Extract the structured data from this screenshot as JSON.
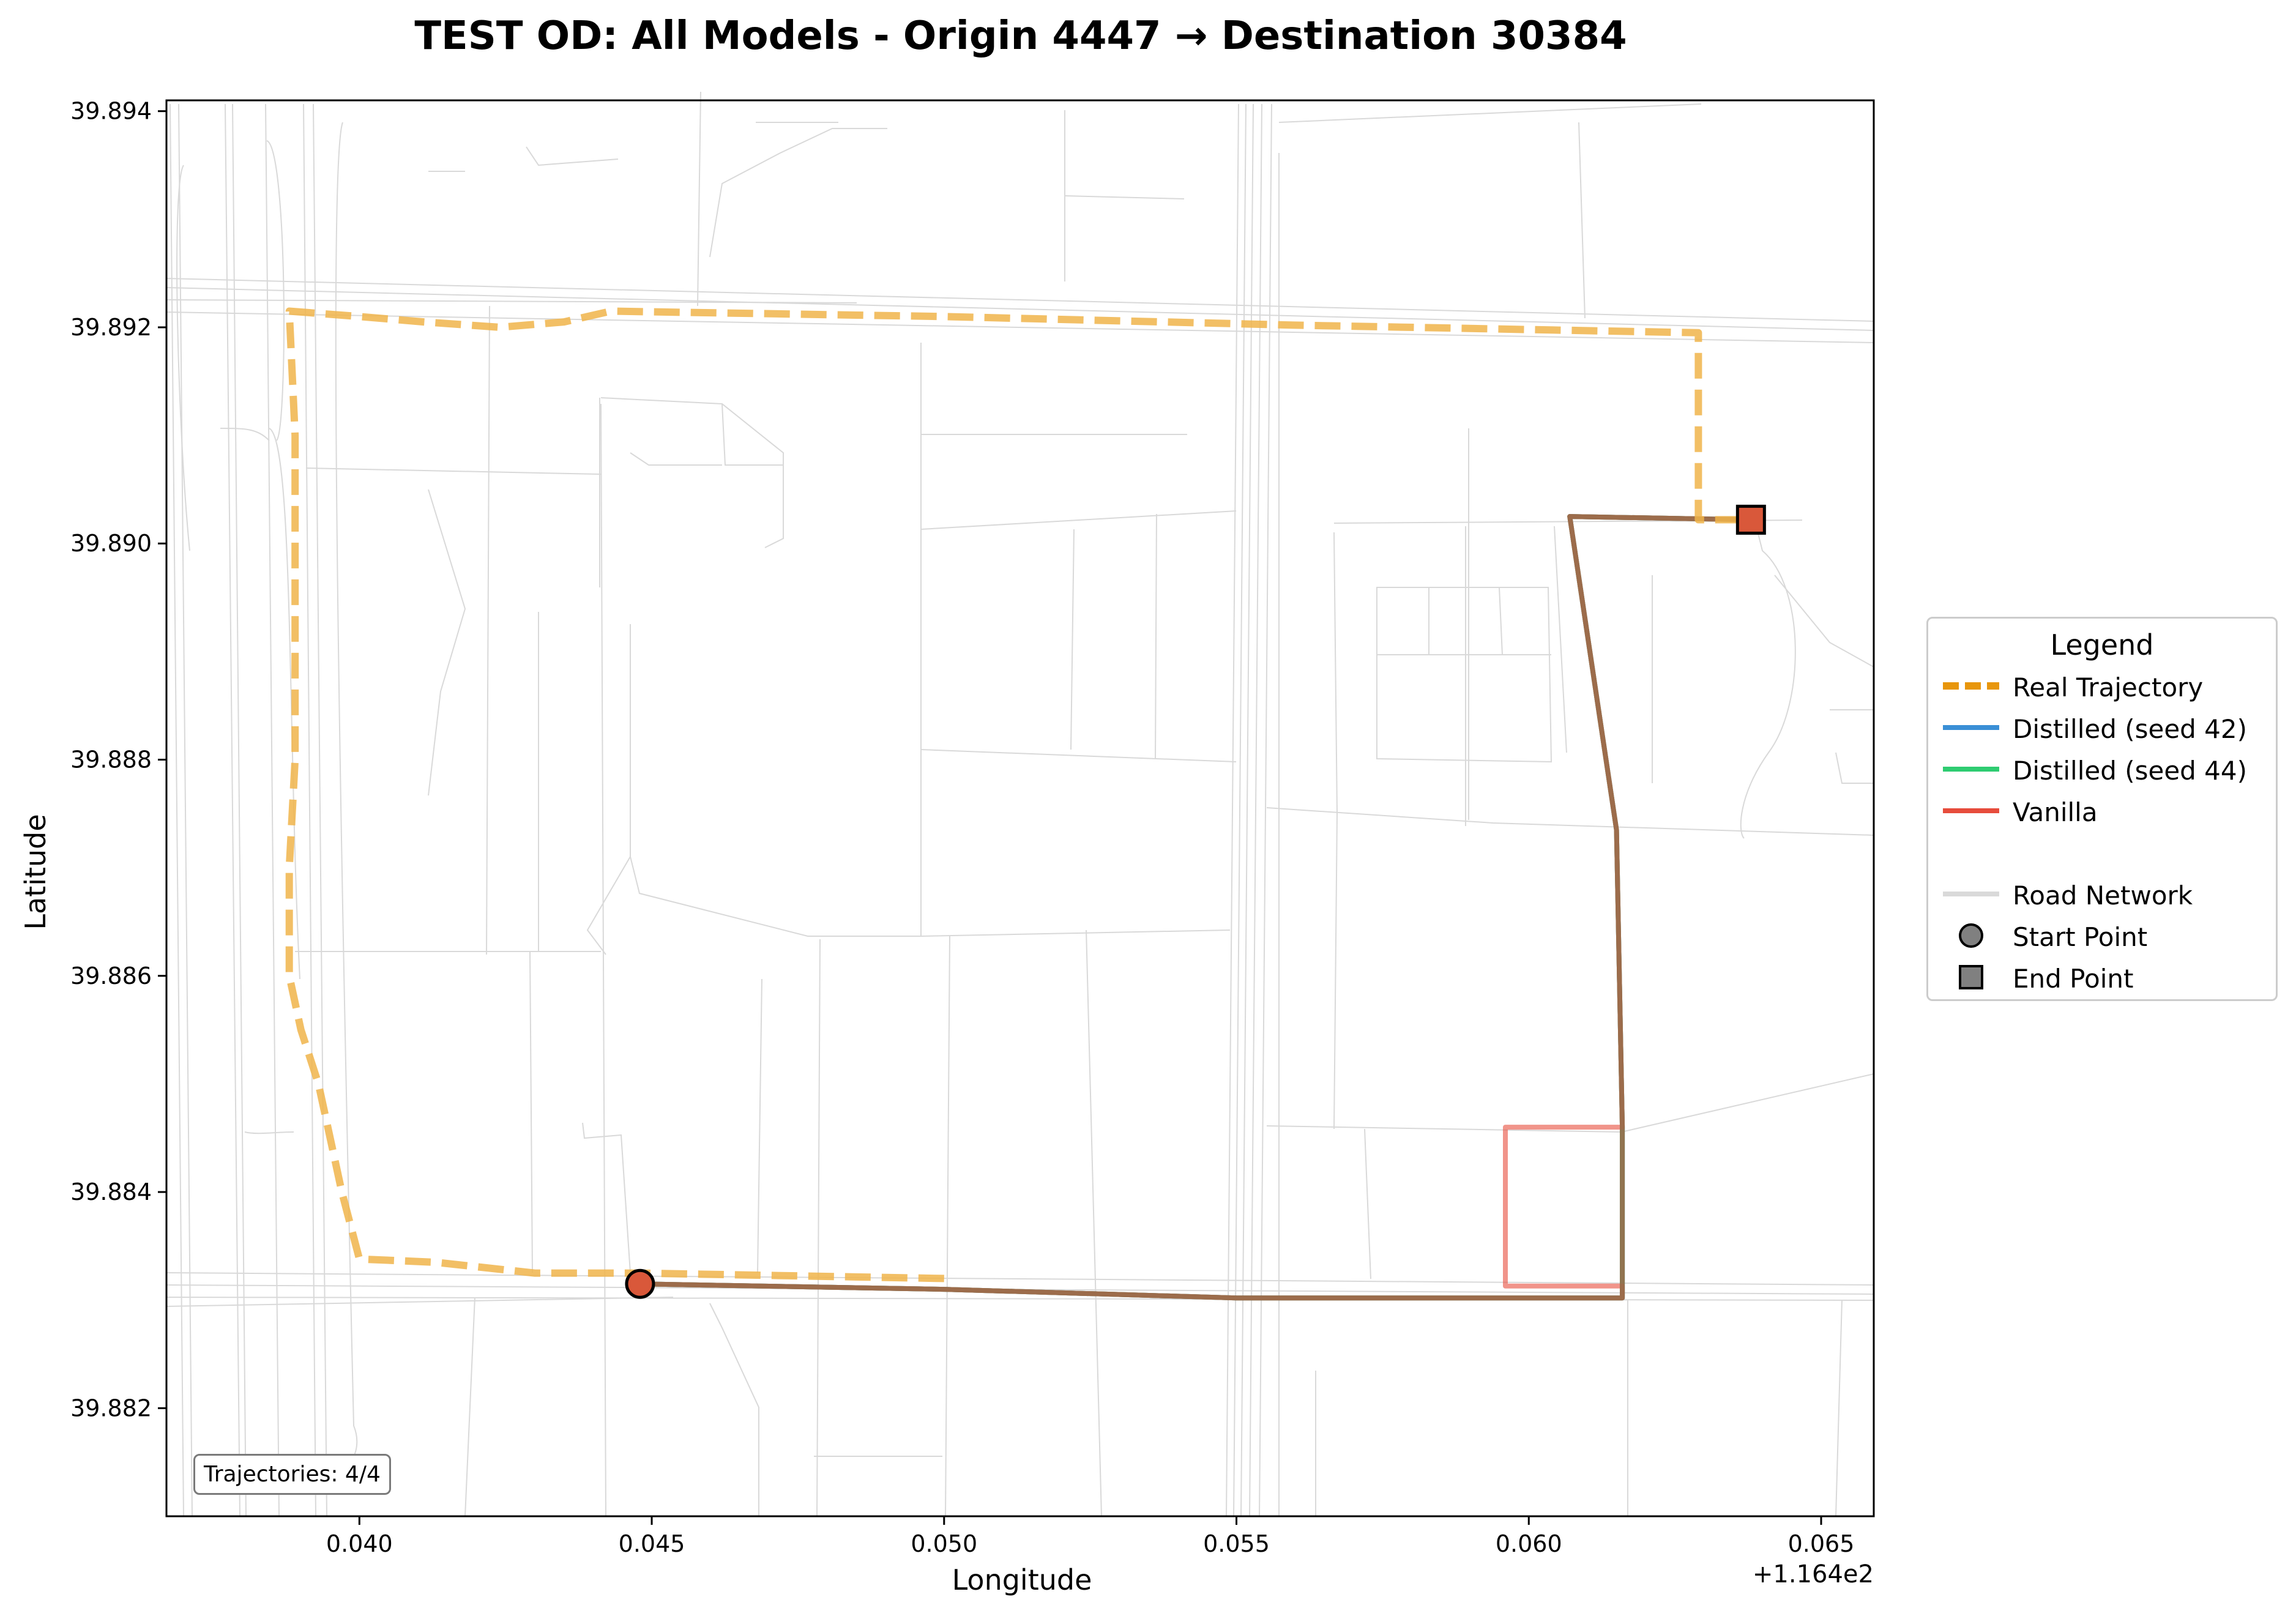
{
  "title": "TEST OD: All Models - Origin 4447 → Destination 30384",
  "axes": {
    "xlabel": "Longitude",
    "ylabel": "Latitude",
    "x_offset_label": "+1.164e2",
    "x_ticks": [
      "0.040",
      "0.045",
      "0.050",
      "0.055",
      "0.060",
      "0.065"
    ],
    "y_ticks": [
      "39.894",
      "39.892",
      "39.890",
      "39.888",
      "39.886",
      "39.884",
      "39.882"
    ]
  },
  "trajectory_count": "Trajectories: 4/4",
  "legend": {
    "title": "Legend",
    "items": [
      {
        "label": "Real Trajectory",
        "style": "dashed-line",
        "color": "#e8960c"
      },
      {
        "label": "Distilled (seed 42)",
        "style": "line",
        "color": "#3a8fd6"
      },
      {
        "label": "Distilled (seed 44)",
        "style": "line",
        "color": "#2ecc71"
      },
      {
        "label": "Vanilla",
        "style": "line",
        "color": "#e74c3c"
      },
      {
        "label": "Road Network",
        "style": "line",
        "color": "#d9d9d9"
      },
      {
        "label": "Start Point",
        "style": "circle",
        "color": "#808080"
      },
      {
        "label": "End Point",
        "style": "square",
        "color": "#808080"
      }
    ]
  },
  "map": {
    "origin_id": "4447",
    "destination_id": "30384",
    "x_range": [
      116.4367,
      116.4659
    ],
    "y_range": [
      39.881,
      39.8941
    ],
    "start_point": {
      "lon": 116.4448,
      "lat": 39.88315,
      "color": "#d9583a"
    },
    "end_point": {
      "lon": 116.4638,
      "lat": 39.89022,
      "color": "#d9583a"
    },
    "real_trajectory": {
      "color": "#f0b44a",
      "points": [
        [
          116.45,
          39.8832
        ],
        [
          116.4448,
          39.88325
        ],
        [
          116.443,
          39.88325
        ],
        [
          116.4413,
          39.88335
        ],
        [
          116.44,
          39.88338
        ],
        [
          116.4397,
          39.884
        ],
        [
          116.4393,
          39.885
        ],
        [
          116.439,
          39.8855
        ],
        [
          116.4388,
          39.886
        ],
        [
          116.4388,
          39.887
        ],
        [
          116.4389,
          39.888
        ],
        [
          116.4389,
          39.891
        ],
        [
          116.4388,
          39.89215
        ],
        [
          116.44,
          39.8921
        ],
        [
          116.4411,
          39.89205
        ],
        [
          116.4424,
          39.892
        ],
        [
          116.4435,
          39.89205
        ],
        [
          116.4443,
          39.89215
        ],
        [
          116.45,
          39.8921
        ],
        [
          116.456,
          39.89202
        ],
        [
          116.4629,
          39.89195
        ],
        [
          116.4629,
          39.8912
        ],
        [
          116.4629,
          39.89022
        ],
        [
          116.4638,
          39.89022
        ]
      ]
    },
    "model_paths": [
      {
        "name": "Distilled (seed 42)",
        "color": "#3a8fd6",
        "opacity": 0.85,
        "points": [
          [
            116.4448,
            39.88315
          ],
          [
            116.45,
            39.8831
          ],
          [
            116.455,
            39.88302
          ],
          [
            116.4616,
            39.88302
          ],
          [
            116.4616,
            39.8846
          ],
          [
            116.4615,
            39.88735
          ],
          [
            116.4607,
            39.89025
          ],
          [
            116.4638,
            39.89022
          ]
        ]
      },
      {
        "name": "Distilled (seed 44)",
        "color": "#2ecc71",
        "opacity": 0.85,
        "points": [
          [
            116.4448,
            39.88315
          ],
          [
            116.45,
            39.8831
          ],
          [
            116.455,
            39.88302
          ],
          [
            116.4616,
            39.88302
          ],
          [
            116.4616,
            39.8846
          ],
          [
            116.4615,
            39.88735
          ],
          [
            116.4607,
            39.89025
          ],
          [
            116.4638,
            39.89022
          ]
        ]
      },
      {
        "name": "Vanilla",
        "color": "#e74c3c",
        "opacity": 0.6,
        "points": [
          [
            116.4448,
            39.88315
          ],
          [
            116.45,
            39.8831
          ],
          [
            116.455,
            39.88302
          ],
          [
            116.4616,
            39.88302
          ],
          [
            116.4616,
            39.88313
          ],
          [
            116.4596,
            39.88313
          ],
          [
            116.4596,
            39.8846
          ],
          [
            116.4616,
            39.8846
          ],
          [
            116.4615,
            39.88735
          ],
          [
            116.4607,
            39.89025
          ],
          [
            116.4638,
            39.89022
          ]
        ]
      },
      {
        "name": "",
        "color": "#9b6a4a",
        "opacity": 0.9,
        "points": [
          [
            116.4448,
            39.88315
          ],
          [
            116.45,
            39.8831
          ],
          [
            116.455,
            39.88302
          ],
          [
            116.4616,
            39.88302
          ],
          [
            116.4616,
            39.8846
          ],
          [
            116.4615,
            39.88735
          ],
          [
            116.4607,
            39.89025
          ],
          [
            116.4638,
            39.89022
          ]
        ]
      }
    ]
  }
}
